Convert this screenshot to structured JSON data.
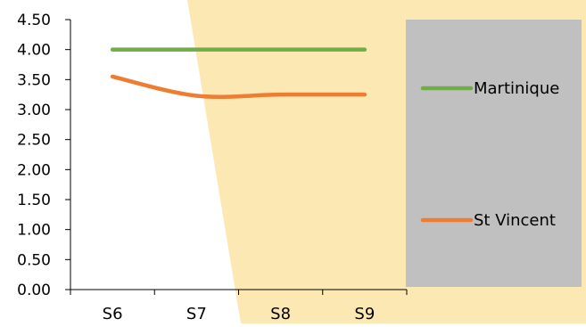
{
  "chart_data": {
    "type": "line",
    "categories": [
      "S6",
      "S7",
      "S8",
      "S9"
    ],
    "series": [
      {
        "name": "Martinique",
        "values": [
          4.0,
          4.0,
          4.0,
          4.0
        ],
        "color": "#70ad47"
      },
      {
        "name": "St Vincent",
        "values": [
          3.55,
          3.23,
          3.25,
          3.25
        ],
        "color": "#ed7d31"
      }
    ],
    "ylim": [
      0,
      4.5
    ],
    "yticks": [
      "0.00",
      "0.50",
      "1.00",
      "1.50",
      "2.00",
      "2.50",
      "3.00",
      "3.50",
      "4.00",
      "4.50"
    ],
    "legend_position": "right",
    "grid": false
  },
  "style": {
    "background_accent": "#fce8b2",
    "legend_background": "#c0c0c0",
    "axis_color": "#000000",
    "text_color": "#000000"
  }
}
